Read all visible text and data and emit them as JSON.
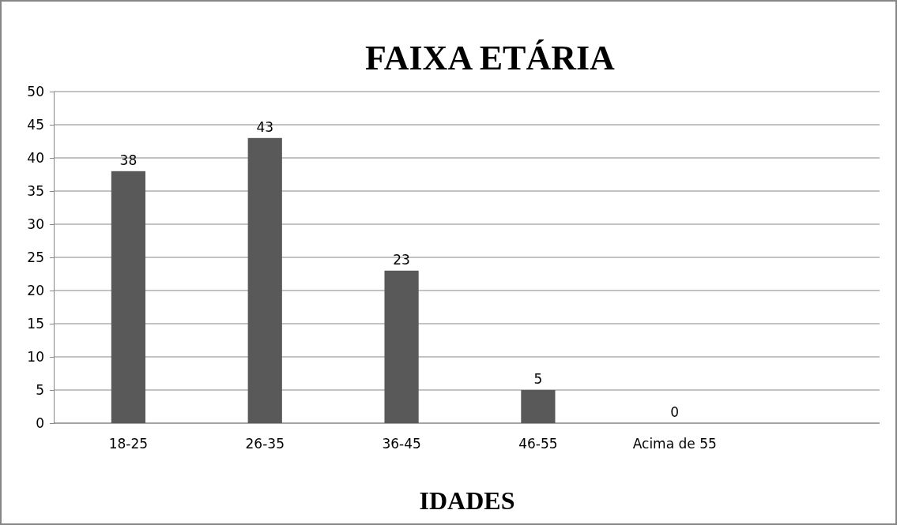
{
  "chart_data": {
    "type": "bar",
    "title": "FAIXA ETÁRIA",
    "xlabel": "IDADES",
    "categories": [
      "18-25",
      "26-35",
      "36-45",
      "46-55",
      "Acima de 55",
      null
    ],
    "values": [
      38,
      43,
      23,
      5,
      0,
      null
    ],
    "color": "#595959",
    "ylim": [
      0,
      50
    ],
    "yticks": [
      0,
      5,
      10,
      15,
      20,
      25,
      30,
      35,
      40,
      45,
      50
    ],
    "grid": "y",
    "data_labels": true
  }
}
